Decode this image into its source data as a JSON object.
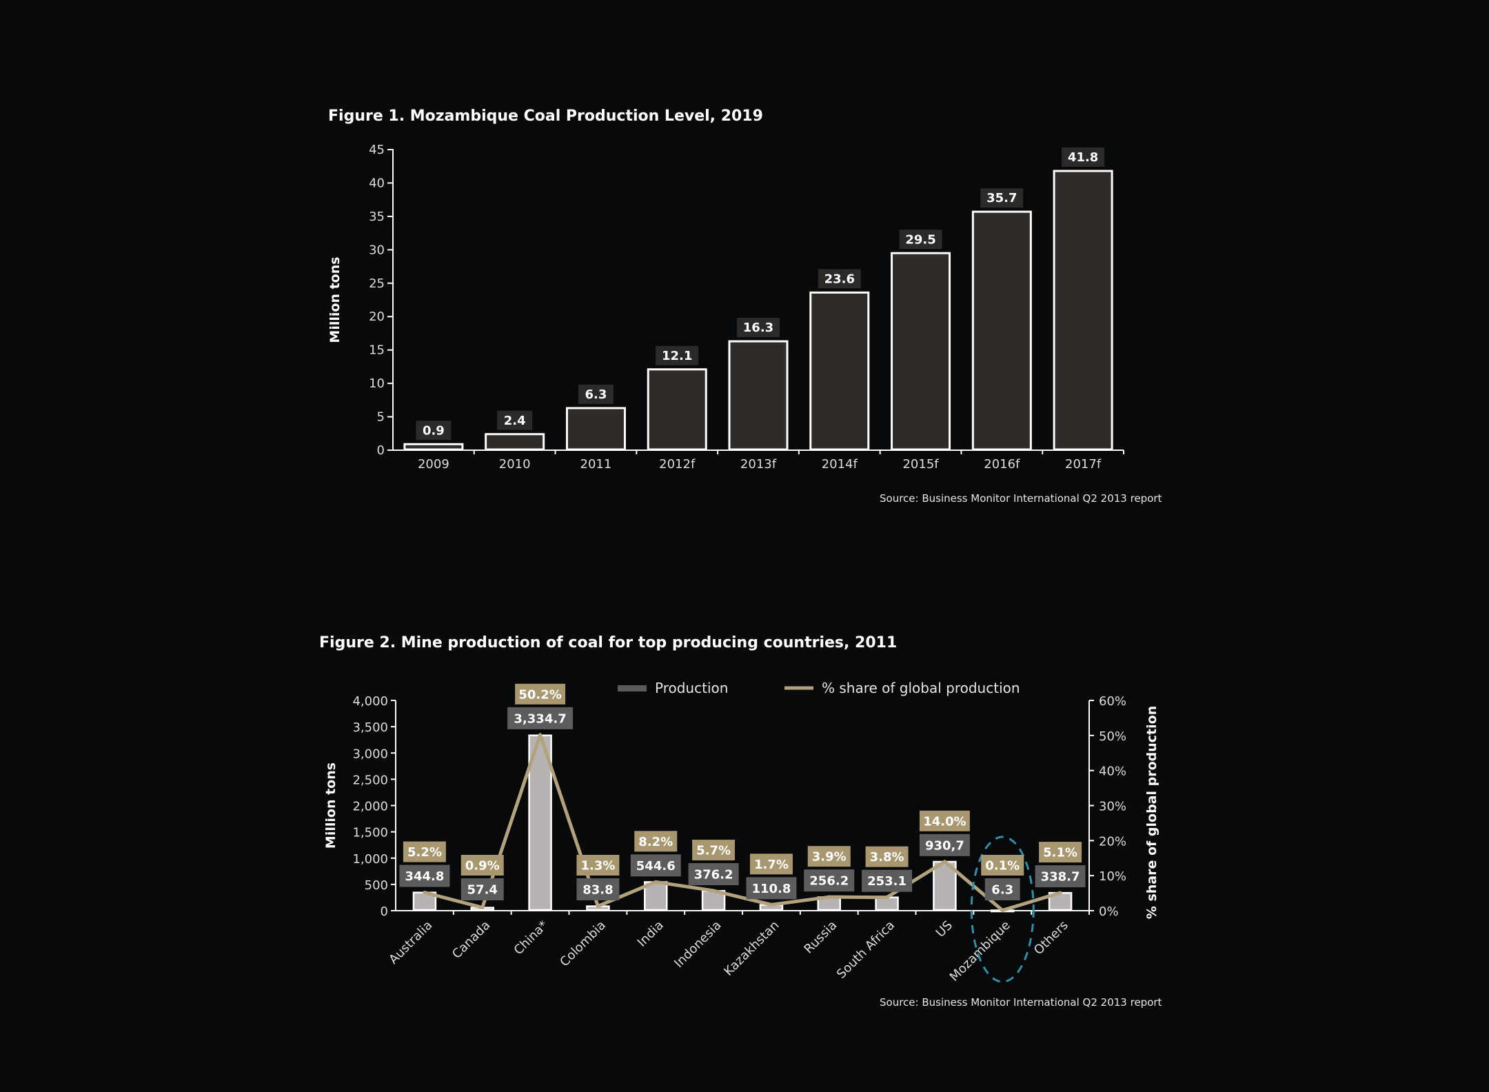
{
  "figure1": {
    "title": "Figure 1. Mozambique Coal Production Level, 2019",
    "source": "Source: Business Monitor International Q2 2013 report"
  },
  "figure2": {
    "title": "Figure 2. Mine production of coal for top producing countries, 2011",
    "source": "Source: Business Monitor International Q2 2013 report"
  },
  "colors": {
    "bar1_fill": "#2e2b29",
    "bar_stroke": "#ffffff",
    "bar2_fill": "#b8b3b3",
    "line": "#b2a27d",
    "prod_label_bg": "#5c5b5d",
    "share_label_bg": "#a8976f",
    "value_label_bg": "#2b2a28",
    "highlight_ellipse": "#2f90a8"
  },
  "chart_data": [
    {
      "type": "bar",
      "title": "Figure 1. Mozambique Coal Production Level, 2019",
      "ylabel": "Million tons",
      "xlabel": "",
      "categories": [
        "2009",
        "2010",
        "2011",
        "2012f",
        "2013f",
        "2014f",
        "2015f",
        "2016f",
        "2017f"
      ],
      "values": [
        0.9,
        2.4,
        6.3,
        12.1,
        16.3,
        23.6,
        29.5,
        35.7,
        41.8
      ],
      "value_labels": [
        "0.9",
        "2.4",
        "6.3",
        "12.1",
        "16.3",
        "23.6",
        "29.5",
        "35.7",
        "41.8"
      ],
      "ylim": [
        0,
        45
      ],
      "yticks": [
        0,
        5,
        10,
        15,
        20,
        25,
        30,
        35,
        40,
        45
      ],
      "ytick_labels": [
        "0",
        "5",
        "10",
        "15",
        "20",
        "25",
        "30",
        "35",
        "40",
        "45"
      ],
      "grid": false,
      "legend": "none"
    },
    {
      "type": "bar",
      "title": "Figure 2. Mine production of coal for top producing countries, 2011",
      "ylabel": "Million tons",
      "y2label": "% share of global production",
      "categories": [
        "Australia",
        "Canada",
        "China*",
        "Colombia",
        "India",
        "Indonesia",
        "Kazakhstan",
        "Russia",
        "South Africa",
        "US",
        "Mozambique",
        "Others"
      ],
      "series": [
        {
          "name": "Production",
          "type": "bar",
          "axis": "left",
          "values": [
            344.8,
            57.4,
            3334.7,
            83.8,
            544.6,
            376.2,
            110.8,
            256.2,
            253.1,
            930.7,
            6.3,
            338.7
          ],
          "labels": [
            "344.8",
            "57.4",
            "3,334.7",
            "83.8",
            "544.6",
            "376.2",
            "110.8",
            "256.2",
            "253.1",
            "930,7",
            "6.3",
            "338.7"
          ]
        },
        {
          "name": "% share of global production",
          "type": "line",
          "axis": "right",
          "values": [
            5.2,
            0.9,
            50.2,
            1.3,
            8.2,
            5.7,
            1.7,
            3.9,
            3.8,
            14.0,
            0.1,
            5.1
          ],
          "labels": [
            "5.2%",
            "0.9%",
            "50.2%",
            "1.3%",
            "8.2%",
            "5.7%",
            "1.7%",
            "3.9%",
            "3.8%",
            "14.0%",
            "0.1%",
            "5.1%"
          ]
        }
      ],
      "ylim": [
        0,
        4000
      ],
      "yticks": [
        0,
        500,
        1000,
        1500,
        2000,
        2500,
        3000,
        3500,
        4000
      ],
      "ytick_labels": [
        "0",
        "500",
        "1,000",
        "1,500",
        "2,000",
        "2,500",
        "3,000",
        "3,500",
        "4,000"
      ],
      "y2lim": [
        0,
        60
      ],
      "y2ticks": [
        0,
        10,
        20,
        30,
        40,
        50,
        60
      ],
      "y2tick_labels": [
        "0%",
        "10%",
        "20%",
        "30%",
        "40%",
        "50%",
        "60%"
      ],
      "highlight": "Mozambique",
      "grid": false,
      "legend": "top-center"
    }
  ]
}
